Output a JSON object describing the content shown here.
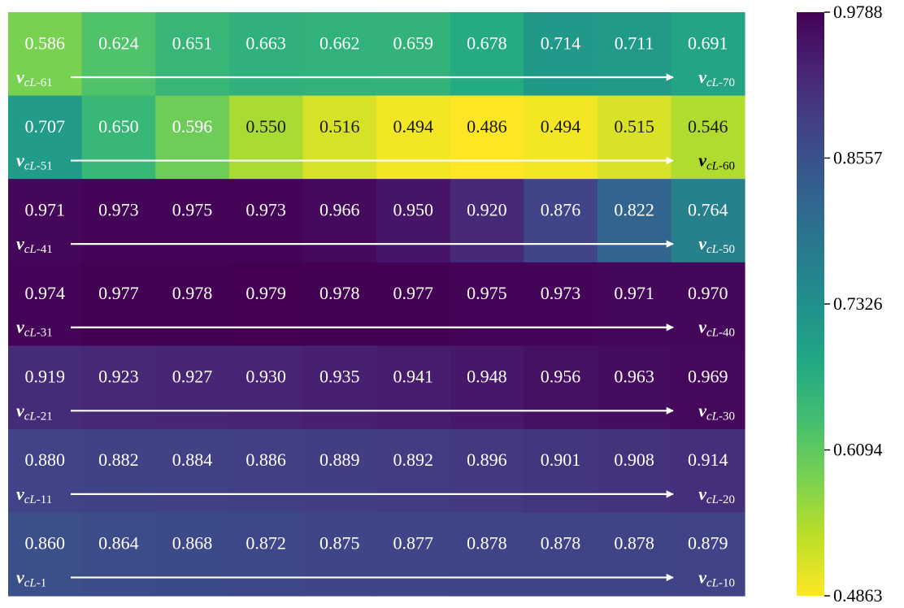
{
  "chart_data": {
    "type": "heatmap",
    "colormap": "viridis_r",
    "vmin": 0.4863,
    "vmax": 0.9788,
    "colorbar_ticks": [
      "0.9788",
      "0.8557",
      "0.7326",
      "0.6094",
      "0.4863"
    ],
    "rows": [
      {
        "start_sub": "cL",
        "start_idx": "-61",
        "end_sub": "cL",
        "end_idx": "-70",
        "values": [
          0.586,
          0.624,
          0.651,
          0.663,
          0.662,
          0.659,
          0.678,
          0.714,
          0.711,
          0.691
        ]
      },
      {
        "start_sub": "cL",
        "start_idx": "-51",
        "end_sub": "cL",
        "end_idx": "-60",
        "values": [
          0.707,
          0.65,
          0.596,
          0.55,
          0.516,
          0.494,
          0.486,
          0.494,
          0.515,
          0.546
        ]
      },
      {
        "start_sub": "cL",
        "start_idx": "-41",
        "end_sub": "cL",
        "end_idx": "-50",
        "values": [
          0.971,
          0.973,
          0.975,
          0.973,
          0.966,
          0.95,
          0.92,
          0.876,
          0.822,
          0.764
        ]
      },
      {
        "start_sub": "cL",
        "start_idx": "-31",
        "end_sub": "cL",
        "end_idx": "-40",
        "values": [
          0.974,
          0.977,
          0.978,
          0.979,
          0.978,
          0.977,
          0.975,
          0.973,
          0.971,
          0.97
        ]
      },
      {
        "start_sub": "cL",
        "start_idx": "-21",
        "end_sub": "cL",
        "end_idx": "-30",
        "values": [
          0.919,
          0.923,
          0.927,
          0.93,
          0.935,
          0.941,
          0.948,
          0.956,
          0.963,
          0.969
        ]
      },
      {
        "start_sub": "cL",
        "start_idx": "-11",
        "end_sub": "cL",
        "end_idx": "-20",
        "values": [
          0.88,
          0.882,
          0.884,
          0.886,
          0.889,
          0.892,
          0.896,
          0.901,
          0.908,
          0.914
        ]
      },
      {
        "start_sub": "cL",
        "start_idx": "-1",
        "end_sub": "cL",
        "end_idx": "-10",
        "values": [
          0.86,
          0.864,
          0.868,
          0.872,
          0.875,
          0.877,
          0.878,
          0.878,
          0.878,
          0.879
        ]
      }
    ],
    "label_glyph": "v",
    "value_format": "3 decimals",
    "title": "",
    "xlabel": "",
    "ylabel": ""
  }
}
